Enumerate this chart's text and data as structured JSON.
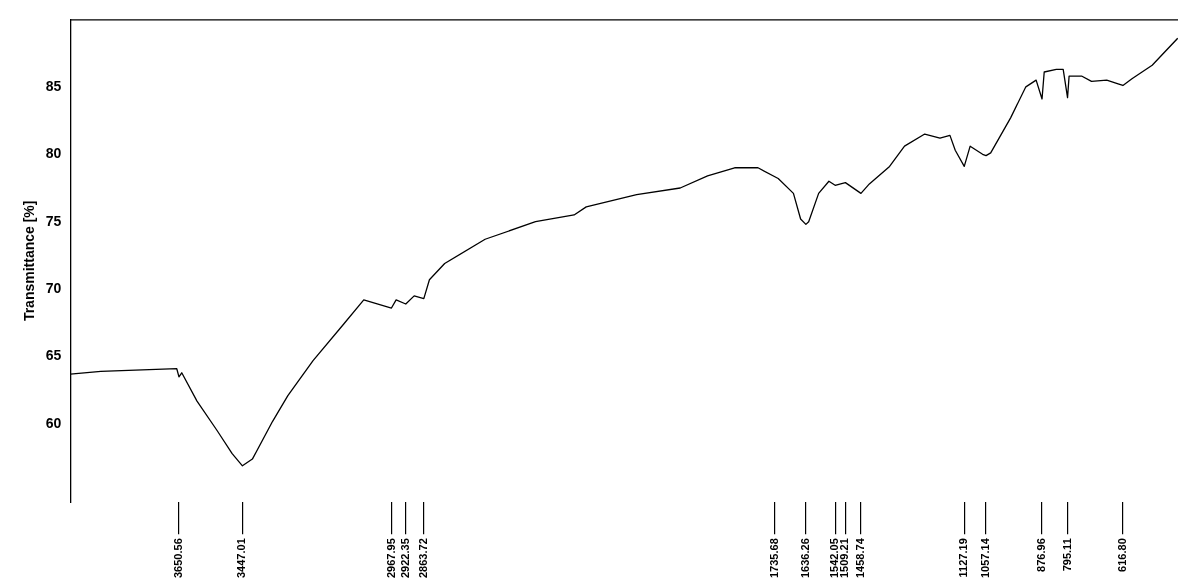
{
  "chart_data": {
    "type": "line",
    "ylabel": "Transmittance [%]",
    "xlim": [
      4000,
      440
    ],
    "ylim": [
      54.2,
      90
    ],
    "yticks": [
      60,
      65,
      70,
      75,
      80,
      85
    ],
    "xticks": [
      {
        "value": 3650.56,
        "label": "3650.56"
      },
      {
        "value": 3447.01,
        "label": "3447.01"
      },
      {
        "value": 2967.95,
        "label": "2967.95"
      },
      {
        "value": 2922.35,
        "label": "2922.35"
      },
      {
        "value": 2863.72,
        "label": "2863.72"
      },
      {
        "value": 1735.68,
        "label": "1735.68"
      },
      {
        "value": 1636.26,
        "label": "1636.26"
      },
      {
        "value": 1542.05,
        "label": "1542.05"
      },
      {
        "value": 1509.21,
        "label": "1509.21"
      },
      {
        "value": 1458.74,
        "label": "1458.74"
      },
      {
        "value": 1127.19,
        "label": "1127.19"
      },
      {
        "value": 1057.14,
        "label": "1057.14"
      },
      {
        "value": 876.96,
        "label": "876.96"
      },
      {
        "value": 795.11,
        "label": "795.11"
      },
      {
        "value": 616.8,
        "label": "616.80"
      }
    ],
    "grid": false,
    "legend": false,
    "marker": "none",
    "line_style": "solid",
    "series": [
      {
        "color": "#000000",
        "x": [
          4000,
          3902,
          3658,
          3651,
          3642,
          3593,
          3528,
          3480,
          3447,
          3415,
          3350,
          3301,
          3220,
          3122,
          3057,
          2968,
          2953,
          2922,
          2895,
          2864,
          2846,
          2797,
          2667,
          2505,
          2381,
          2342,
          2180,
          2040,
          1952,
          1865,
          1790,
          1725,
          1676,
          1653,
          1636,
          1627,
          1595,
          1562,
          1542,
          1509,
          1459,
          1432,
          1367,
          1319,
          1254,
          1205,
          1173,
          1156,
          1127,
          1108,
          1068,
          1057,
          1042,
          978,
          929,
          896,
          877,
          870,
          831,
          809,
          795,
          790,
          750,
          718,
          669,
          630,
          617,
          588,
          523,
          441
        ],
        "values": [
          63.7,
          63.9,
          64.1,
          63.5,
          63.8,
          61.7,
          59.5,
          57.8,
          56.9,
          57.4,
          60.2,
          62.1,
          64.7,
          67.4,
          69.2,
          68.6,
          69.2,
          68.9,
          69.5,
          69.3,
          70.7,
          71.9,
          73.7,
          75.0,
          75.5,
          76.1,
          77.0,
          77.5,
          78.4,
          79.0,
          79.0,
          78.2,
          77.1,
          75.2,
          74.8,
          75.0,
          77.1,
          78.0,
          77.7,
          77.9,
          77.1,
          77.8,
          79.1,
          80.6,
          81.5,
          81.2,
          81.4,
          80.3,
          79.1,
          80.6,
          80.0,
          79.9,
          80.1,
          82.7,
          85.0,
          85.5,
          84.1,
          86.1,
          86.3,
          86.3,
          84.2,
          85.8,
          85.8,
          85.4,
          85.5,
          85.2,
          85.1,
          85.6,
          86.6,
          88.6
        ]
      }
    ]
  }
}
